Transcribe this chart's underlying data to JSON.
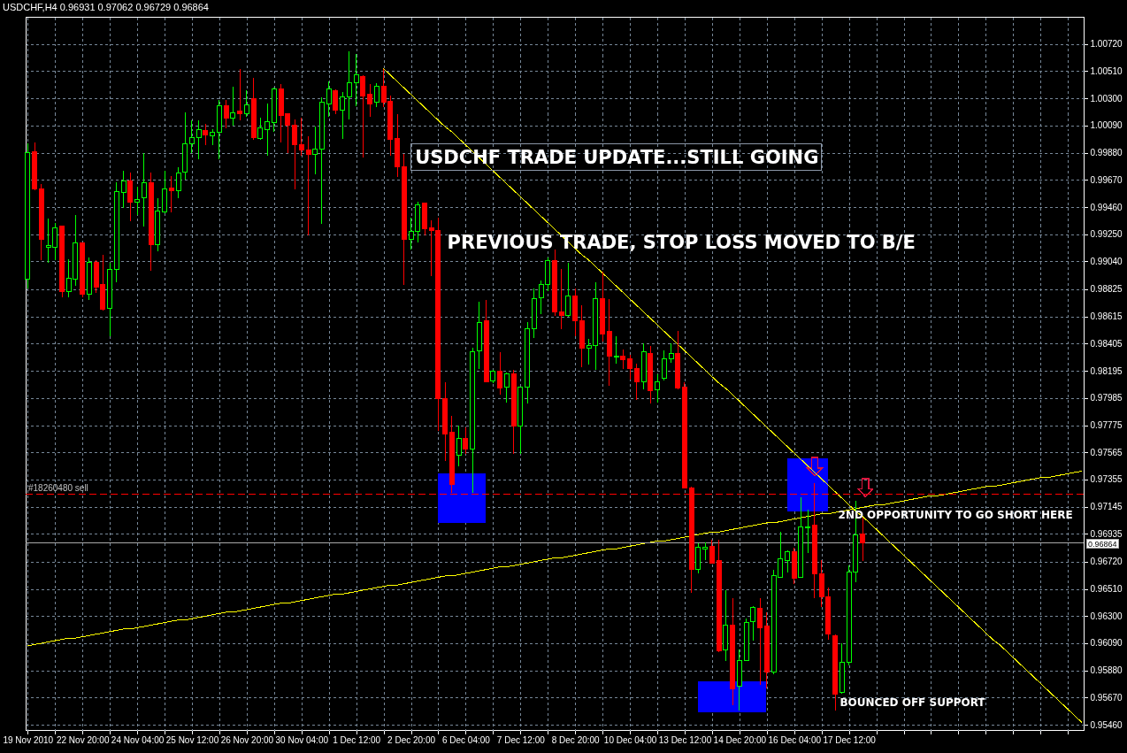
{
  "chart_data": {
    "type": "candlestick",
    "title": "USDCHF,H4 0.96931 0.97062 0.96729 0.96864",
    "categories": [
      "19 Nov 2010",
      null,
      null,
      null,
      null,
      null,
      null,
      null,
      "22 Nov 20:00",
      null,
      null,
      null,
      null,
      null,
      null,
      null,
      "24 Nov 04:00",
      null,
      null,
      null,
      null,
      null,
      null,
      null,
      "25 Nov 12:00",
      null,
      null,
      null,
      null,
      null,
      null,
      null,
      "26 Nov 20:00",
      null,
      null,
      null,
      null,
      null,
      null,
      null,
      "30 Nov 04:00",
      null,
      null,
      null,
      null,
      null,
      null,
      null,
      "1 Dec 12:00",
      null,
      null,
      null,
      null,
      null,
      null,
      null,
      "2 Dec 20:00",
      null,
      null,
      null,
      null,
      null,
      null,
      null,
      "6 Dec 04:00",
      null,
      null,
      null,
      null,
      null,
      null,
      null,
      "7 Dec 12:00",
      null,
      null,
      null,
      null,
      null,
      null,
      null,
      "8 Dec 20:00",
      null,
      null,
      null,
      null,
      null,
      null,
      null,
      "10 Dec 04:00",
      null,
      null,
      null,
      null,
      null,
      null,
      null,
      "13 Dec 12:00",
      null,
      null,
      null,
      null,
      null,
      null,
      null,
      "14 Dec 20:00",
      null,
      null,
      null,
      null,
      null,
      null,
      null,
      "16 Dec 04:00",
      null,
      null,
      null,
      null,
      null,
      null,
      null,
      "17 Dec 12:00",
      null,
      null,
      null,
      null,
      null,
      null,
      null,
      null,
      null,
      null,
      null,
      null,
      null,
      null,
      null,
      null,
      null,
      null,
      null,
      null,
      null,
      null,
      null,
      null,
      null,
      null,
      null,
      null,
      null,
      null,
      null,
      null,
      null,
      null
    ],
    "ohlc": [
      [
        0.989,
        0.9995,
        0.9883,
        0.9988
      ],
      [
        0.9989,
        0.9996,
        0.9959,
        0.996
      ],
      [
        0.996,
        0.9964,
        0.9905,
        0.9921
      ],
      [
        0.9915,
        0.9937,
        0.9903,
        0.9916
      ],
      [
        0.9915,
        0.9934,
        0.9905,
        0.993
      ],
      [
        0.9931,
        0.9932,
        0.9876,
        0.9881
      ],
      [
        0.9881,
        0.9906,
        0.9876,
        0.9891
      ],
      [
        0.989,
        0.994,
        0.9885,
        0.9918
      ],
      [
        0.9918,
        0.9919,
        0.9876,
        0.9879
      ],
      [
        0.9879,
        0.9907,
        0.9874,
        0.9903
      ],
      [
        0.9903,
        0.9905,
        0.988,
        0.9884
      ],
      [
        0.9886,
        0.9909,
        0.9866,
        0.9867
      ],
      [
        0.9868,
        0.9903,
        0.9846,
        0.9898
      ],
      [
        0.9898,
        0.9965,
        0.9888,
        0.9958
      ],
      [
        0.9957,
        0.9974,
        0.9945,
        0.9966
      ],
      [
        0.9966,
        0.9973,
        0.9935,
        0.995
      ],
      [
        0.995,
        0.9962,
        0.994,
        0.9952
      ],
      [
        0.9953,
        0.9988,
        0.9931,
        0.9965
      ],
      [
        0.9965,
        0.9973,
        0.9897,
        0.9917
      ],
      [
        0.9917,
        0.9953,
        0.9912,
        0.9943
      ],
      [
        0.9942,
        0.9974,
        0.9941,
        0.996
      ],
      [
        0.9961,
        0.997,
        0.9942,
        0.9959
      ],
      [
        0.9959,
        0.9977,
        0.9953,
        0.9972
      ],
      [
        0.9973,
        1.0019,
        0.9967,
        0.9995
      ],
      [
        0.9995,
        1.0013,
        0.9988,
        1.0
      ],
      [
        1.0,
        1.0013,
        0.9983,
        1.0006
      ],
      [
        1.0005,
        1.001,
        0.9994,
        1.0002
      ],
      [
        1.0001,
        1.0006,
        0.9994,
        1.0004
      ],
      [
        1.0004,
        1.0029,
        0.9983,
        1.0024
      ],
      [
        1.0024,
        1.0029,
        1.0007,
        1.0015
      ],
      [
        1.0015,
        1.0039,
        1.0009,
        1.0019
      ],
      [
        1.002,
        1.0053,
        1.0013,
        1.0018
      ],
      [
        1.0018,
        1.0036,
        1.0016,
        1.0025
      ],
      [
        1.003,
        1.0046,
        0.9998,
        1.0
      ],
      [
        0.9999,
        1.0015,
        0.9998,
        1.0007
      ],
      [
        1.0006,
        1.0026,
        0.9986,
        1.0012
      ],
      [
        1.0011,
        1.0038,
        1.0004,
        1.0037
      ],
      [
        1.0037,
        1.0041,
        0.9996,
        1.0017
      ],
      [
        1.0018,
        1.0018,
        0.9988,
        1.0009
      ],
      [
        1.0009,
        1.0014,
        0.996,
        0.9994
      ],
      [
        0.9994,
        1.0015,
        0.9986,
        0.999
      ],
      [
        0.999,
        1.0001,
        0.9924,
        0.9987
      ],
      [
        0.9987,
        1.0008,
        0.9971,
        0.9991
      ],
      [
        0.9991,
        1.0031,
        0.9933,
        1.0027
      ],
      [
        1.0026,
        1.0043,
        1.0016,
        1.0037
      ],
      [
        1.0036,
        1.0037,
        1.0018,
        1.0021
      ],
      [
        1.0021,
        1.0035,
        0.9999,
        1.0031
      ],
      [
        1.0031,
        1.0066,
        1.0014,
        1.0042
      ],
      [
        1.0042,
        1.0064,
        1.0024,
        1.0048
      ],
      [
        1.0047,
        1.0048,
        0.9984,
        1.0032
      ],
      [
        1.0033,
        1.0041,
        1.0016,
        1.0026
      ],
      [
        1.0027,
        1.0042,
        1.0023,
        1.0039
      ],
      [
        1.0039,
        1.0053,
        1.0023,
        1.0027
      ],
      [
        1.0028,
        1.0032,
        0.9986,
        0.9998
      ],
      [
        0.9999,
        1.0018,
        0.9969,
        0.9977
      ],
      [
        0.9977,
        0.9987,
        0.9886,
        0.9921
      ],
      [
        0.9921,
        0.9938,
        0.9913,
        0.9927
      ],
      [
        0.9927,
        0.995,
        0.9919,
        0.9948
      ],
      [
        0.9949,
        0.9949,
        0.9924,
        0.9929
      ],
      [
        0.993,
        0.9936,
        0.9893,
        0.9928
      ],
      [
        0.9928,
        0.9938,
        0.9773,
        0.9798
      ],
      [
        0.9798,
        0.9811,
        0.975,
        0.9771
      ],
      [
        0.9772,
        0.9785,
        0.9725,
        0.9732
      ],
      [
        0.9754,
        0.9777,
        0.9746,
        0.9767
      ],
      [
        0.9767,
        0.9776,
        0.9755,
        0.9759
      ],
      [
        0.9759,
        0.9837,
        0.9725,
        0.9834
      ],
      [
        0.9835,
        0.9873,
        0.9821,
        0.9857
      ],
      [
        0.9858,
        0.9874,
        0.9811,
        0.9811
      ],
      [
        0.9812,
        0.982,
        0.981,
        0.9819
      ],
      [
        0.9819,
        0.9834,
        0.9801,
        0.9806
      ],
      [
        0.9807,
        0.9818,
        0.9795,
        0.9817
      ],
      [
        0.9817,
        0.982,
        0.9755,
        0.9777
      ],
      [
        0.9777,
        0.9807,
        0.9755,
        0.9807
      ],
      [
        0.9807,
        0.9857,
        0.9794,
        0.9852
      ],
      [
        0.9852,
        0.9883,
        0.9845,
        0.9875
      ],
      [
        0.9876,
        0.9889,
        0.9863,
        0.9886
      ],
      [
        0.9886,
        0.9907,
        0.9881,
        0.9905
      ],
      [
        0.9905,
        0.9913,
        0.9862,
        0.9865
      ],
      [
        0.9865,
        0.9898,
        0.9852,
        0.9862
      ],
      [
        0.9862,
        0.9903,
        0.9861,
        0.9877
      ],
      [
        0.9877,
        0.9883,
        0.9846,
        0.9858
      ],
      [
        0.9858,
        0.987,
        0.9822,
        0.9837
      ],
      [
        0.9837,
        0.9844,
        0.9824,
        0.9839
      ],
      [
        0.9839,
        0.9888,
        0.982,
        0.9875
      ],
      [
        0.9875,
        0.9896,
        0.9842,
        0.9848
      ],
      [
        0.985,
        0.9875,
        0.9808,
        0.9831
      ],
      [
        0.983,
        0.9846,
        0.9825,
        0.9831
      ],
      [
        0.9831,
        0.9836,
        0.9821,
        0.9828
      ],
      [
        0.9829,
        0.9832,
        0.9813,
        0.9821
      ],
      [
        0.9821,
        0.9825,
        0.9797,
        0.9811
      ],
      [
        0.9811,
        0.9841,
        0.9805,
        0.9834
      ],
      [
        0.9833,
        0.9839,
        0.9794,
        0.9804
      ],
      [
        0.9805,
        0.9817,
        0.9795,
        0.9811
      ],
      [
        0.9814,
        0.9835,
        0.9812,
        0.9829
      ],
      [
        0.9829,
        0.9841,
        0.9826,
        0.9833
      ],
      [
        0.9833,
        0.985,
        0.9805,
        0.9806
      ],
      [
        0.9807,
        0.9811,
        0.9729,
        0.9729
      ],
      [
        0.9729,
        0.973,
        0.9648,
        0.9666
      ],
      [
        0.9666,
        0.9686,
        0.9663,
        0.9683
      ],
      [
        0.9682,
        0.9687,
        0.9673,
        0.9683
      ],
      [
        0.9684,
        0.9689,
        0.9671,
        0.9671
      ],
      [
        0.9673,
        0.9689,
        0.9602,
        0.9603
      ],
      [
        0.9604,
        0.965,
        0.9595,
        0.9623
      ],
      [
        0.9623,
        0.9644,
        0.9561,
        0.9574
      ],
      [
        0.9576,
        0.9604,
        0.9557,
        0.9596
      ],
      [
        0.9596,
        0.9628,
        0.9596,
        0.9625
      ],
      [
        0.9626,
        0.9638,
        0.9611,
        0.9637
      ],
      [
        0.9636,
        0.9644,
        0.9577,
        0.9621
      ],
      [
        0.9622,
        0.9633,
        0.9574,
        0.9587
      ],
      [
        0.9587,
        0.9666,
        0.9585,
        0.9661
      ],
      [
        0.966,
        0.9695,
        0.966,
        0.9674
      ],
      [
        0.9673,
        0.9681,
        0.9664,
        0.968
      ],
      [
        0.968,
        0.9683,
        0.9655,
        0.9659
      ],
      [
        0.966,
        0.9722,
        0.966,
        0.9699
      ],
      [
        0.9698,
        0.9712,
        0.9679,
        0.9699
      ],
      [
        0.97,
        0.9733,
        0.9644,
        0.9663
      ],
      [
        0.9663,
        0.9673,
        0.9637,
        0.9645
      ],
      [
        0.9645,
        0.9652,
        0.9612,
        0.9616
      ],
      [
        0.9615,
        0.9616,
        0.9557,
        0.957
      ],
      [
        0.9571,
        0.9609,
        0.957,
        0.9594
      ],
      [
        0.9594,
        0.9669,
        0.9592,
        0.9664
      ],
      [
        0.9664,
        0.9719,
        0.9656,
        0.9693
      ],
      [
        0.96931,
        0.97062,
        0.96729,
        0.96864
      ],
      null,
      null,
      null,
      null,
      null,
      null,
      null,
      null,
      null,
      null,
      null,
      null,
      null,
      null,
      null,
      null,
      null,
      null,
      null,
      null,
      null,
      null,
      null,
      null,
      null,
      null,
      null,
      null,
      null,
      null,
      null,
      null
    ],
    "colors": [
      "#00ff00",
      "#ff0000",
      "#ff0000",
      "#00ff00",
      "#00ff00",
      "#ff0000",
      "#00ff00",
      "#00ff00",
      "#ff0000",
      "#00ff00",
      "#ff0000",
      "#ff0000",
      "#00ff00",
      "#00ff00",
      "#00ff00",
      "#ff0000",
      "#00ff00",
      "#00ff00",
      "#ff0000",
      "#00ff00",
      "#00ff00",
      "#ff0000",
      "#00ff00",
      "#00ff00",
      "#00ff00",
      "#00ff00",
      "#ff0000",
      "#00ff00",
      "#00ff00",
      "#ff0000",
      "#00ff00",
      "#ff0000",
      "#00ff00",
      "#ff0000",
      "#00ff00",
      "#00ff00",
      "#00ff00",
      "#ff0000",
      "#ff0000",
      "#ff0000",
      "#ff0000",
      "#ff0000",
      "#00ff00",
      "#00ff00",
      "#00ff00",
      "#ff0000",
      "#00ff00",
      "#00ff00",
      "#00ff00",
      "#ff0000",
      "#ff0000",
      "#00ff00",
      "#ff0000",
      "#ff0000",
      "#ff0000",
      "#ff0000",
      "#00ff00",
      "#00ff00",
      "#ff0000",
      "#ff0000",
      "#ff0000",
      "#ff0000",
      "#ff0000",
      "#00ff00",
      "#ff0000",
      "#00ff00",
      "#00ff00",
      "#ff0000",
      "#00ff00",
      "#ff0000",
      "#00ff00",
      "#ff0000",
      "#00ff00",
      "#00ff00",
      "#00ff00",
      "#00ff00",
      "#00ff00",
      "#ff0000",
      "#ff0000",
      "#00ff00",
      "#ff0000",
      "#ff0000",
      "#00ff00",
      "#00ff00",
      "#ff0000",
      "#ff0000",
      "#00ff00",
      "#ff0000",
      "#ff0000",
      "#ff0000",
      "#00ff00",
      "#ff0000",
      "#00ff00",
      "#00ff00",
      "#00ff00",
      "#ff0000",
      "#ff0000",
      "#ff0000",
      "#00ff00",
      "#00ff00",
      "#ff0000",
      "#ff0000",
      "#00ff00",
      "#ff0000",
      "#00ff00",
      "#00ff00",
      "#00ff00",
      "#ff0000",
      "#ff0000",
      "#00ff00",
      "#00ff00",
      "#00ff00",
      "#ff0000",
      "#00ff00",
      "#00ff00",
      "#ff0000",
      "#ff0000",
      "#ff0000",
      "#ff0000",
      "#00ff00",
      "#00ff00",
      "#00ff00",
      "#ff0000",
      null,
      null,
      null,
      null,
      null,
      null,
      null,
      null,
      null,
      null,
      null,
      null,
      null,
      null,
      null,
      null,
      null,
      null,
      null,
      null,
      null,
      null,
      null,
      null,
      null,
      null,
      null,
      null,
      null,
      null,
      null,
      null
    ],
    "series": [
      {
        "type": "line",
        "color": "#ffff00",
        "values": [
          null,
          null,
          null,
          null,
          null,
          null,
          null,
          null,
          null,
          null,
          null,
          null,
          null,
          null,
          null,
          null,
          null,
          null,
          null,
          null,
          null,
          null,
          null,
          null,
          null,
          null,
          null,
          null,
          null,
          null,
          null,
          null,
          null,
          null,
          null,
          null,
          null,
          null,
          null,
          null,
          null,
          null,
          null,
          null,
          null,
          null,
          null,
          null,
          null,
          null,
          null,
          null,
          1.0053,
          1.0048,
          1.0043,
          1.0038,
          1.0033,
          1.0028,
          1.0023,
          1.0018,
          1.0013,
          1.0008,
          1.0004,
          0.9999,
          0.9994,
          0.9989,
          0.9984,
          0.9979,
          0.9974,
          0.9969,
          0.9964,
          0.9959,
          0.9954,
          0.9949,
          0.9944,
          0.9939,
          0.9934,
          0.9929,
          0.9924,
          0.9919,
          0.9914,
          0.9909,
          0.9905,
          0.99,
          0.9895,
          0.989,
          0.9885,
          0.988,
          0.9875,
          0.987,
          0.9865,
          0.986,
          0.9855,
          0.985,
          0.9845,
          0.984,
          0.9835,
          0.983,
          0.9825,
          0.982,
          0.9815,
          0.981,
          0.9806,
          0.9801,
          0.9796,
          0.9791,
          0.9786,
          0.9781,
          0.9776,
          0.9771,
          0.9766,
          0.9761,
          0.9756,
          0.9751,
          0.9746,
          0.9741,
          0.9736,
          0.9731,
          0.9726,
          0.9721,
          0.9716,
          0.9711,
          0.9707,
          0.9702,
          0.9697,
          0.9692,
          0.9687,
          0.9682,
          0.9677,
          0.9672,
          0.9667,
          0.9662,
          0.9657,
          0.9652,
          0.9647,
          0.9642,
          0.9637,
          0.9632,
          0.9627,
          0.9622,
          0.9617,
          0.9612,
          0.9608,
          0.9603,
          0.9598,
          0.9593,
          0.9588,
          0.9583,
          0.9578,
          0.9573,
          0.9568,
          0.9563,
          0.9558,
          0.9553,
          0.9548
        ]
      },
      {
        "type": "line",
        "color": "#ffff00",
        "values": [
          0.9607,
          0.9608,
          0.9609,
          0.961,
          0.9611,
          0.9612,
          0.9613,
          0.9613,
          0.9614,
          0.9615,
          0.9616,
          0.9617,
          0.9618,
          0.9619,
          0.962,
          0.962,
          0.9621,
          0.9622,
          0.9623,
          0.9624,
          0.9625,
          0.9626,
          0.9627,
          0.9627,
          0.9628,
          0.9629,
          0.963,
          0.9631,
          0.9632,
          0.9633,
          0.9633,
          0.9634,
          0.9635,
          0.9636,
          0.9637,
          0.9638,
          0.9639,
          0.964,
          0.964,
          0.9641,
          0.9642,
          0.9643,
          0.9644,
          0.9645,
          0.9646,
          0.9647,
          0.9647,
          0.9648,
          0.9649,
          0.965,
          0.9651,
          0.9652,
          0.9653,
          0.9654,
          0.9654,
          0.9655,
          0.9656,
          0.9657,
          0.9658,
          0.9659,
          0.966,
          0.9661,
          0.9661,
          0.9662,
          0.9663,
          0.9664,
          0.9665,
          0.9666,
          0.9667,
          0.9668,
          0.9668,
          0.9669,
          0.967,
          0.9671,
          0.9672,
          0.9673,
          0.9674,
          0.9675,
          0.9675,
          0.9676,
          0.9677,
          0.9678,
          0.9679,
          0.968,
          0.9681,
          0.9682,
          0.9682,
          0.9683,
          0.9684,
          0.9685,
          0.9686,
          0.9687,
          0.9688,
          0.9688,
          0.9689,
          0.969,
          0.9691,
          0.9692,
          0.9693,
          0.9694,
          0.9695,
          0.9695,
          0.9696,
          0.9697,
          0.9698,
          0.9699,
          0.97,
          0.9701,
          0.9702,
          0.9702,
          0.9703,
          0.9704,
          0.9705,
          0.9706,
          0.9707,
          0.9708,
          0.9709,
          0.9709,
          0.971,
          0.9711,
          0.9712,
          0.9713,
          0.9714,
          0.9715,
          0.9716,
          0.9716,
          0.9717,
          0.9718,
          0.9719,
          0.972,
          0.9721,
          0.9722,
          0.9723,
          0.9723,
          0.9724,
          0.9725,
          0.9726,
          0.9727,
          0.9728,
          0.9729,
          0.973,
          0.973,
          0.9731,
          0.9732,
          0.9733,
          0.9734,
          0.9735,
          0.9736,
          0.9737,
          0.9737,
          0.9738,
          0.9739,
          0.974,
          0.9741,
          0.9742
        ]
      }
    ],
    "ylim": [
      0.9542,
      1.0093
    ],
    "yticks": [
      {
        "value": 1.0072,
        "label": "1.00720"
      },
      {
        "value": 1.0051,
        "label": "1.00510"
      },
      {
        "value": 1.003,
        "label": "1.00300"
      },
      {
        "value": 1.0009,
        "label": "1.00090"
      },
      {
        "value": 0.9988,
        "label": "0.99880"
      },
      {
        "value": 0.9967,
        "label": "0.99670"
      },
      {
        "value": 0.9946,
        "label": "0.99460"
      },
      {
        "value": 0.9925,
        "label": "0.99250"
      },
      {
        "value": 0.9904,
        "label": "0.99040"
      },
      {
        "value": 0.98825,
        "label": "0.98825"
      },
      {
        "value": 0.98615,
        "label": "0.98615"
      },
      {
        "value": 0.98405,
        "label": "0.98405"
      },
      {
        "value": 0.98195,
        "label": "0.98195"
      },
      {
        "value": 0.97985,
        "label": "0.97985"
      },
      {
        "value": 0.97775,
        "label": "0.97775"
      },
      {
        "value": 0.97565,
        "label": "0.97565"
      },
      {
        "value": 0.97355,
        "label": "0.97355"
      },
      {
        "value": 0.97145,
        "label": "0.97145"
      },
      {
        "value": 0.96935,
        "label": "0.96935"
      },
      {
        "value": 0.9672,
        "label": "0.96720"
      },
      {
        "value": 0.9651,
        "label": "0.96510"
      },
      {
        "value": 0.963,
        "label": "0.96300"
      },
      {
        "value": 0.9609,
        "label": "0.96090"
      },
      {
        "value": 0.9588,
        "label": "0.95880"
      },
      {
        "value": 0.9567,
        "label": "0.95670"
      },
      {
        "value": 0.9546,
        "label": "0.95460"
      }
    ],
    "ref_lines": [
      {
        "axis": "y",
        "value": 0.9724,
        "label": "#18260480 sell",
        "color": "#ff0000",
        "line_style": "dashed"
      },
      {
        "axis": "y",
        "value": 0.96864,
        "label": "0.96864",
        "color": "#a9a9a9"
      }
    ],
    "annotations": [
      "USDCHF TRADE UPDATE...STILL GOING",
      "PREVIOUS TRADE, STOP LOSS MOVED TO B/E",
      "2ND OPPORTUNITY TO GO SHORT HERE",
      "BOUNCED OFF SUPPORT"
    ],
    "grid": true
  }
}
